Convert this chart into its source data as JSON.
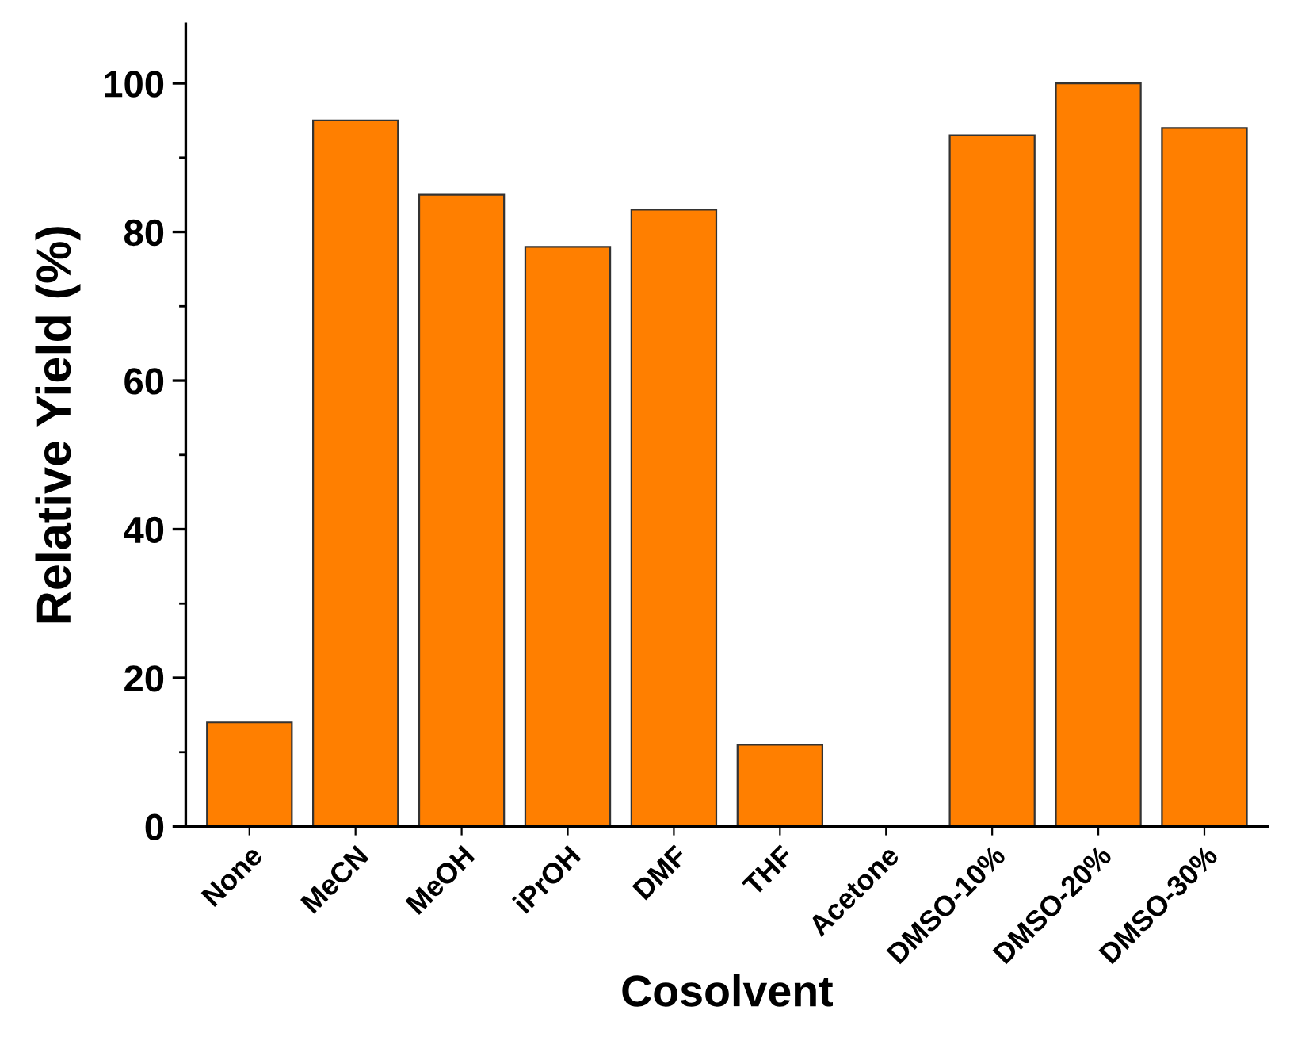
{
  "chart_data": {
    "type": "bar",
    "xlabel": "Cosolvent",
    "ylabel": "Relative Yield (%)",
    "categories": [
      "None",
      "MeCN",
      "MeOH",
      "iPrOH",
      "DMF",
      "THF",
      "Acetone",
      "DMSO-10%",
      "DMSO-20%",
      "DMSO-30%"
    ],
    "values": [
      14,
      95,
      85,
      78,
      83,
      11,
      0,
      93,
      100,
      94
    ],
    "color": "#ff7f00",
    "ylim": [
      0,
      108
    ],
    "yticks": [
      0,
      {
        "value": 10,
        "label": null
      },
      20,
      {
        "value": 30,
        "label": null
      },
      40,
      {
        "value": 50,
        "label": null
      },
      60,
      {
        "value": 70,
        "label": null
      },
      80,
      {
        "value": 90,
        "label": null
      },
      100
    ],
    "grid": false,
    "legend": false
  }
}
